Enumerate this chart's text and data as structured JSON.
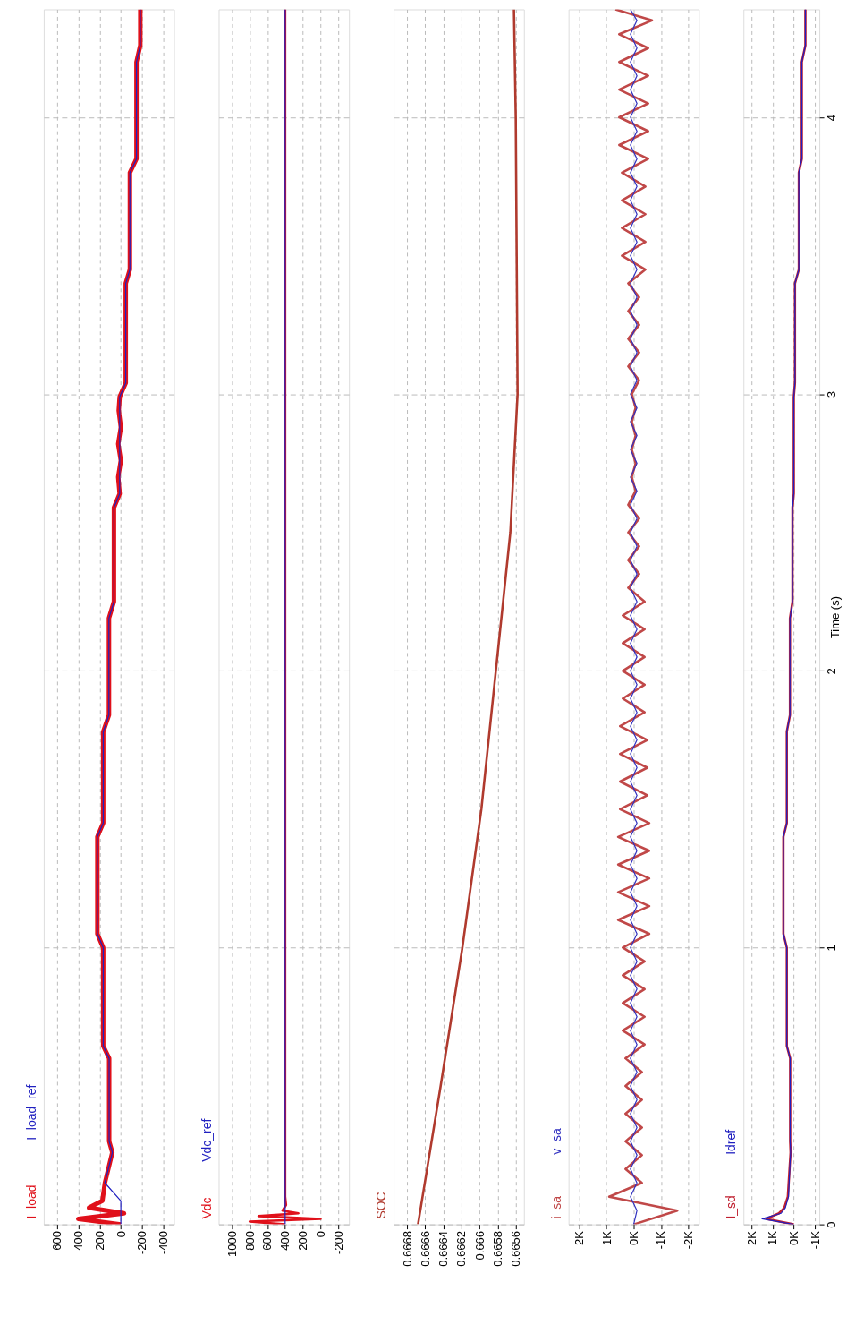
{
  "chart_data": [
    {
      "type": "line",
      "xlim": [
        725,
        -500
      ],
      "xticks": [
        600,
        400,
        200,
        0,
        -200,
        -400
      ],
      "ylim": [
        0,
        4.39
      ],
      "yticks": [
        0,
        1,
        2,
        3,
        4
      ],
      "grid": true,
      "legend": "bottom left",
      "tick_labels": "x",
      "series": [
        {
          "name": "I_load",
          "color": "#e0101a",
          "values": [
            0,
            0.02,
            0.04,
            0.06,
            0.085,
            0.15,
            0.26,
            0.3,
            0.6,
            0.645,
            1.0,
            1.05,
            1.4,
            1.45,
            1.78,
            1.84,
            2.19,
            2.25,
            2.59,
            2.64,
            2.7,
            2.76,
            2.82,
            2.88,
            2.94,
            2.99,
            3.04,
            3.4,
            3.45,
            3.8,
            3.85,
            4.2,
            4.26,
            4.39
          ],
          "x": [
            0,
            400,
            -30,
            300,
            174,
            150,
            80,
            110,
            110,
            166,
            166,
            221,
            221,
            166,
            166,
            112,
            112,
            65,
            65,
            11,
            25,
            0,
            25,
            0,
            20,
            11,
            -46,
            -46,
            -85,
            -85,
            -147,
            -147,
            -183,
            -183
          ]
        },
        {
          "name": "I_load_ref",
          "color": "#2020c0",
          "values": [
            0,
            0.085,
            0.15,
            0.26,
            0.3,
            0.6,
            0.645,
            1.0,
            1.05,
            1.4,
            1.45,
            1.78,
            1.84,
            2.19,
            2.25,
            2.59,
            2.64,
            2.99,
            3.04,
            3.4,
            3.45,
            3.8,
            3.85,
            4.2,
            4.26,
            4.39
          ],
          "x": [
            0,
            0,
            150,
            80,
            110,
            110,
            166,
            166,
            221,
            221,
            166,
            166,
            112,
            112,
            65,
            65,
            11,
            11,
            -46,
            -46,
            -85,
            -85,
            -147,
            -147,
            -183,
            -183
          ]
        }
      ]
    },
    {
      "type": "line",
      "xlim": [
        1150,
        -320
      ],
      "xticks": [
        1000,
        800,
        600,
        400,
        200,
        0,
        -200
      ],
      "ylim": [
        0,
        4.39
      ],
      "yticks": [
        0,
        1,
        2,
        3,
        4
      ],
      "grid": true,
      "legend": "bottom left",
      "tick_labels": "x",
      "series": [
        {
          "name": "Vdc",
          "color": "#e0101a",
          "values": [
            0,
            0.01,
            0.02,
            0.03,
            0.04,
            0.05,
            0.07,
            0.1,
            0.5,
            1,
            1.5,
            2,
            2.5,
            3,
            3.5,
            4,
            4.39
          ],
          "x": [
            400,
            800,
            0,
            700,
            250,
            430,
            390,
            400,
            400,
            400,
            400,
            400,
            400,
            400,
            400,
            400,
            400
          ]
        },
        {
          "name": "Vdc_ref",
          "color": "#2020c0",
          "values": [
            0,
            4.39
          ],
          "x": [
            400,
            400
          ]
        }
      ]
    },
    {
      "type": "line",
      "xlim": [
        0.66695,
        0.66551
      ],
      "xticks": [
        0.6668,
        0.6666,
        0.6664,
        0.6662,
        0.666,
        0.6658,
        0.6656
      ],
      "ylim": [
        0,
        4.39
      ],
      "yticks": [
        0,
        1,
        2,
        3,
        4
      ],
      "grid": true,
      "legend": "bottom left",
      "tick_labels": "x",
      "series": [
        {
          "name": "SOC",
          "color": "#b03a2e",
          "values": [
            0,
            0.5,
            1,
            1.5,
            2,
            2.5,
            3,
            3.5,
            4,
            4.39
          ],
          "x": [
            0.66668,
            0.66643,
            0.66619,
            0.66598,
            0.66582,
            0.66566,
            0.66558,
            0.66559,
            0.6656,
            0.66562
          ]
        }
      ]
    },
    {
      "type": "line",
      "xlim": [
        2390,
        -2390
      ],
      "xticks": [
        {
          "value": 2000,
          "label": "2K"
        },
        {
          "value": 1000,
          "label": "1K"
        },
        {
          "value": 0,
          "label": "0K"
        },
        {
          "value": -1000,
          "label": "-1K"
        },
        {
          "value": -2000,
          "label": "-2K"
        }
      ],
      "ylim": [
        0,
        4.39
      ],
      "yticks": [
        0,
        1,
        2,
        3,
        4
      ],
      "grid": true,
      "legend": "bottom left",
      "tick_labels": "x",
      "series": [
        {
          "name": "i_sa",
          "color": "#c04848",
          "values": [
            0,
            0.05,
            0.1,
            0.15,
            0.2,
            0.25,
            0.3,
            0.35,
            0.4,
            0.45,
            0.5,
            0.55,
            0.6,
            0.65,
            0.7,
            0.75,
            0.8,
            0.85,
            0.9,
            0.95,
            1.0,
            1.05,
            1.1,
            1.15,
            1.2,
            1.25,
            1.3,
            1.35,
            1.4,
            1.45,
            1.5,
            1.55,
            1.6,
            1.65,
            1.7,
            1.75,
            1.8,
            1.85,
            1.9,
            1.95,
            2.0,
            2.05,
            2.1,
            2.15,
            2.2,
            2.25,
            2.3,
            2.35,
            2.4,
            2.45,
            2.5,
            2.55,
            2.6,
            2.65,
            2.7,
            2.75,
            2.8,
            2.85,
            2.9,
            2.95,
            3.0,
            3.05,
            3.1,
            3.15,
            3.2,
            3.25,
            3.3,
            3.35,
            3.4,
            3.45,
            3.5,
            3.55,
            3.6,
            3.65,
            3.7,
            3.75,
            3.8,
            3.85,
            3.9,
            3.95,
            4.0,
            4.05,
            4.1,
            4.15,
            4.2,
            4.25,
            4.3,
            4.35,
            4.39
          ],
          "x": [
            0,
            -1600,
            900,
            -300,
            300,
            -300,
            300,
            -300,
            300,
            -300,
            300,
            -300,
            300,
            -400,
            400,
            -400,
            400,
            -400,
            400,
            -400,
            400,
            -570,
            570,
            -570,
            570,
            -570,
            570,
            -570,
            570,
            -570,
            500,
            -500,
            500,
            -500,
            500,
            -500,
            500,
            -400,
            400,
            -400,
            400,
            -400,
            400,
            -400,
            400,
            -400,
            200,
            -200,
            200,
            -200,
            200,
            -200,
            200,
            -70,
            70,
            -70,
            70,
            -70,
            70,
            -70,
            70,
            -200,
            200,
            -200,
            200,
            -200,
            200,
            -200,
            200,
            -430,
            430,
            -430,
            430,
            -430,
            430,
            -430,
            430,
            -530,
            530,
            -530,
            530,
            -530,
            530,
            -530,
            530,
            -530,
            530,
            -670,
            670
          ]
        },
        {
          "name": "v_sa",
          "color": "#3030c0",
          "values": [
            0,
            0.05,
            0.1,
            0.15,
            0.2,
            0.25,
            0.3,
            0.35,
            0.4,
            0.45,
            0.5,
            0.55,
            0.6,
            0.65,
            0.7,
            0.75,
            0.8,
            0.85,
            0.9,
            0.95,
            1.0,
            1.05,
            1.1,
            1.15,
            1.2,
            1.25,
            1.3,
            1.35,
            1.4,
            1.45,
            1.5,
            1.55,
            1.6,
            1.65,
            1.7,
            1.75,
            1.8,
            1.85,
            1.9,
            1.95,
            2.0,
            2.05,
            2.1,
            2.15,
            2.2,
            2.25,
            2.3,
            2.35,
            2.4,
            2.45,
            2.5,
            2.55,
            2.6,
            2.65,
            2.7,
            2.75,
            2.8,
            2.85,
            2.9,
            2.95,
            3.0,
            3.05,
            3.1,
            3.15,
            3.2,
            3.25,
            3.3,
            3.35,
            3.4,
            3.45,
            3.5,
            3.55,
            3.6,
            3.65,
            3.7,
            3.75,
            3.8,
            3.85,
            3.9,
            3.95,
            4.0,
            4.05,
            4.1,
            4.15,
            4.2,
            4.25,
            4.3,
            4.35,
            4.39
          ],
          "x": [
            0,
            -120,
            120,
            -120,
            120,
            -120,
            120,
            -120,
            120,
            -120,
            120,
            -120,
            120,
            -120,
            120,
            -120,
            120,
            -120,
            120,
            -120,
            120,
            -120,
            120,
            -120,
            120,
            -120,
            120,
            -120,
            120,
            -120,
            120,
            -120,
            120,
            -120,
            120,
            -120,
            120,
            -120,
            120,
            -120,
            120,
            -120,
            120,
            -120,
            120,
            -120,
            120,
            -120,
            120,
            -120,
            120,
            -120,
            120,
            -120,
            120,
            -120,
            120,
            -120,
            120,
            -120,
            120,
            -120,
            120,
            -120,
            120,
            -120,
            120,
            -120,
            120,
            -120,
            120,
            -120,
            120,
            -120,
            120,
            -120,
            120,
            -120,
            120,
            -120,
            120,
            -120,
            120,
            -120,
            120,
            -120,
            120,
            -120,
            120
          ]
        }
      ]
    },
    {
      "type": "line",
      "xlim": [
        2380,
        -1210
      ],
      "xticks": [
        {
          "value": 2000,
          "label": "2K"
        },
        {
          "value": 1000,
          "label": "1K"
        },
        {
          "value": 0,
          "label": "0K"
        },
        {
          "value": -1000,
          "label": "-1K"
        }
      ],
      "ylim": [
        0,
        4.39
      ],
      "yticks": [
        0,
        1,
        2,
        3,
        4
      ],
      "grid": true,
      "legend": "bottom left",
      "ylabel": "Time (s)",
      "series": [
        {
          "name": "I_sd",
          "color": "#c02030",
          "values": [
            0,
            0.02,
            0.04,
            0.06,
            0.1,
            0.2,
            0.26,
            0.3,
            0.6,
            0.645,
            1.0,
            1.05,
            1.4,
            1.45,
            1.78,
            1.84,
            2.19,
            2.25,
            2.59,
            2.64,
            2.99,
            3.04,
            3.4,
            3.45,
            3.8,
            3.85,
            4.2,
            4.26,
            4.39
          ],
          "x": [
            0,
            1300,
            700,
            450,
            280,
            200,
            150,
            170,
            170,
            330,
            330,
            490,
            490,
            330,
            330,
            180,
            180,
            60,
            60,
            0,
            0,
            -55,
            -55,
            -240,
            -240,
            -380,
            -380,
            -550,
            -550
          ]
        },
        {
          "name": "Idref",
          "color": "#2020c0",
          "values": [
            0,
            0.02,
            0.04,
            0.06,
            0.1,
            0.2,
            0.26,
            0.3,
            0.6,
            0.645,
            1.0,
            1.05,
            1.4,
            1.45,
            1.78,
            1.84,
            2.19,
            2.25,
            2.59,
            2.64,
            2.99,
            3.04,
            3.4,
            3.45,
            3.8,
            3.85,
            4.2,
            4.26,
            4.39
          ],
          "x": [
            0,
            1500,
            600,
            400,
            250,
            190,
            150,
            170,
            170,
            330,
            330,
            490,
            490,
            330,
            330,
            180,
            180,
            60,
            60,
            0,
            0,
            -55,
            -55,
            -240,
            -240,
            -380,
            -380,
            -550,
            -550
          ]
        }
      ]
    }
  ]
}
